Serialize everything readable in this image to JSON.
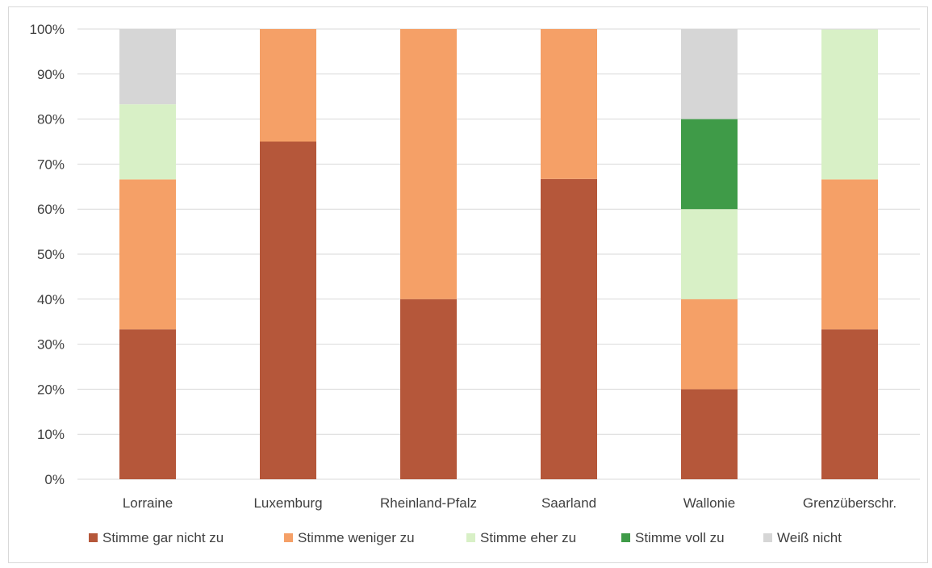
{
  "chart_data": {
    "type": "bar",
    "stacked": true,
    "percent": true,
    "title": "",
    "xlabel": "",
    "ylabel": "",
    "ylim": [
      0,
      100
    ],
    "y_ticks": [
      "0%",
      "10%",
      "20%",
      "30%",
      "40%",
      "50%",
      "60%",
      "70%",
      "80%",
      "90%",
      "100%"
    ],
    "grid": true,
    "legend_position": "bottom",
    "categories": [
      "Lorraine",
      "Luxemburg",
      "Rheinland-Pfalz",
      "Saarland",
      "Wallonie",
      "Grenzüberschr."
    ],
    "series": [
      {
        "name": "Stimme gar nicht zu",
        "color": "#b5573a",
        "values": [
          33.3,
          75,
          40,
          66.7,
          20,
          33.3
        ]
      },
      {
        "name": "Stimme weniger zu",
        "color": "#f5a067",
        "values": [
          33.3,
          25,
          60,
          33.3,
          20,
          33.3
        ]
      },
      {
        "name": "Stimme eher zu",
        "color": "#d8f0c6",
        "values": [
          16.7,
          0,
          0,
          0,
          20,
          33.3
        ]
      },
      {
        "name": "Stimme voll zu",
        "color": "#3f9b48",
        "values": [
          0,
          0,
          0,
          0,
          20,
          0
        ]
      },
      {
        "name": "Weiß nicht",
        "color": "#d6d6d6",
        "values": [
          16.7,
          0,
          0,
          0,
          20,
          0
        ]
      }
    ]
  }
}
